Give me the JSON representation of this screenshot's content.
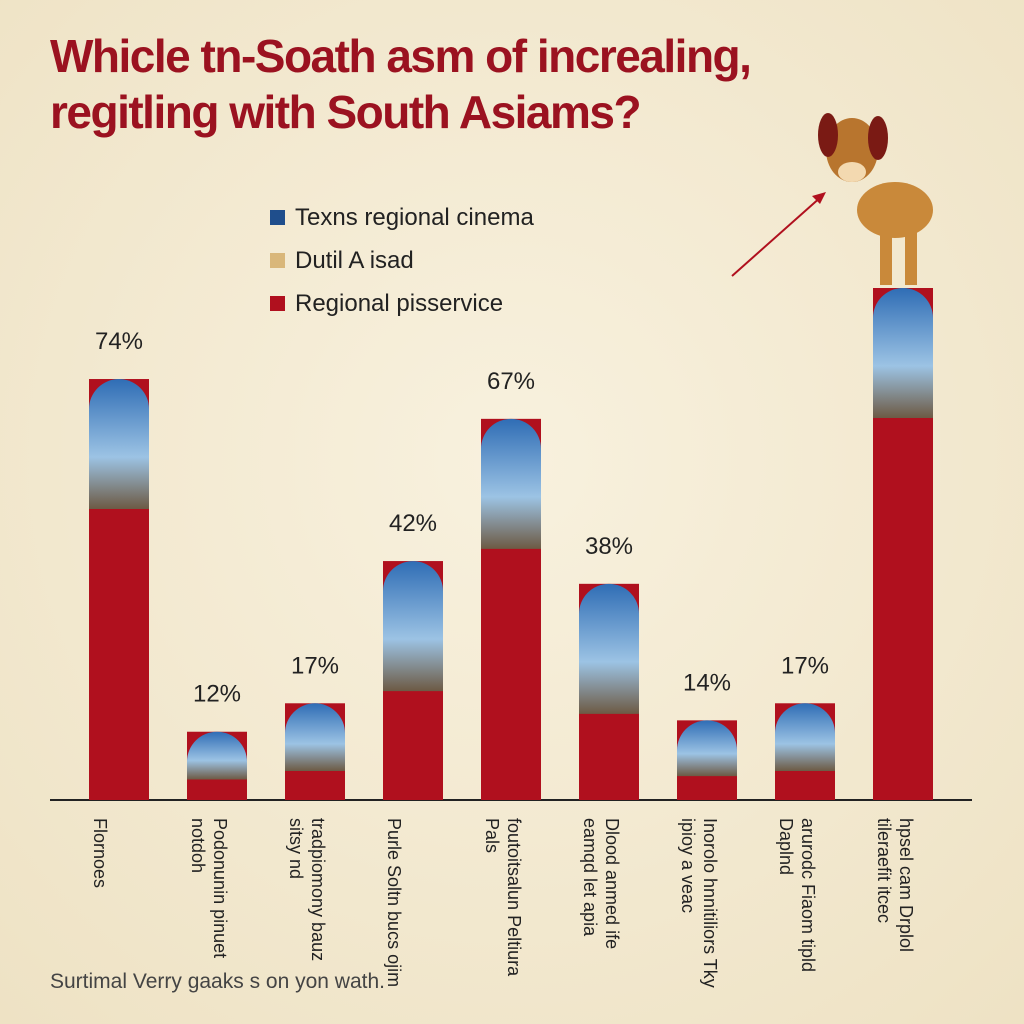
{
  "chart_data": {
    "type": "bar",
    "title": "Whicle tn-Soath asm of increaling, regitling with South Asiams?",
    "legend": [
      {
        "name": "Texns regional cinema",
        "color": "#1f4e8c"
      },
      {
        "name": "Dutil A isad",
        "color": "#d9b77a"
      },
      {
        "name": "Regional pisservice",
        "color": "#b0101e"
      }
    ],
    "categories": [
      "Flornoes",
      "Podonunin pinuet notdoh",
      "tradpiomony bauz sitsy nd",
      "Purle Soltn bucs ojim",
      "foutoitsalun Peltiura Pals",
      "Dlood anmed ife eamqd let apia",
      "Inorolo hnnitiliors Tky ipioy a veac",
      "arurodc Fiaom tipld Daplnd",
      "hpsel cam Drplol tileraefit itcec"
    ],
    "values": [
      74,
      12,
      17,
      42,
      67,
      38,
      14,
      17,
      90
    ],
    "value_labels": [
      "74%",
      "12%",
      "17%",
      "42%",
      "67%",
      "38%",
      "14%",
      "17%",
      null
    ],
    "color": "#b0101e",
    "footnote": "Surtimal Verry gaaks s on yon wath."
  }
}
